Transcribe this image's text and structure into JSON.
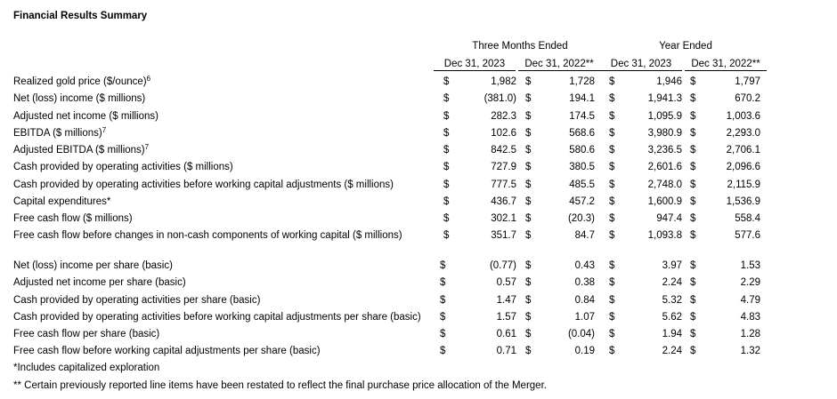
{
  "title": "Financial Results Summary",
  "currency": "$",
  "header": {
    "groups": [
      "Three Months Ended",
      "Year Ended"
    ],
    "columns": [
      "Dec 31, 2023",
      "Dec 31, 2022**",
      "Dec 31, 2023",
      "Dec 31, 2022**"
    ]
  },
  "sections": [
    {
      "rows": [
        {
          "label": "Realized gold price ($/ounce)",
          "note": "6",
          "cells": [
            "1,982",
            "1,728",
            "1,946",
            "1,797"
          ]
        },
        {
          "label": "Net (loss) income ($ millions)",
          "cells": [
            "(381.0)",
            "194.1",
            "1,941.3",
            "670.2"
          ]
        },
        {
          "label": "Adjusted net income ($ millions)",
          "cells": [
            "282.3",
            "174.5",
            "1,095.9",
            "1,003.6"
          ]
        },
        {
          "label": "EBITDA ($ millions)",
          "note": "7",
          "cells": [
            "102.6",
            "568.6",
            "3,980.9",
            "2,293.0"
          ]
        },
        {
          "label": "Adjusted EBITDA ($ millions)",
          "note": "7",
          "cells": [
            "842.5",
            "580.6",
            "3,236.5",
            "2,706.1"
          ]
        },
        {
          "label": "Cash provided by operating activities ($ millions)",
          "cells": [
            "727.9",
            "380.5",
            "2,601.6",
            "2,096.6"
          ]
        },
        {
          "label": "Cash provided by operating activities before working capital adjustments ($ millions)",
          "cells": [
            "777.5",
            "485.5",
            "2,748.0",
            "2,115.9"
          ]
        },
        {
          "label": "Capital expenditures*",
          "cells": [
            "436.7",
            "457.2",
            "1,600.9",
            "1,536.9"
          ]
        },
        {
          "label": "Free cash flow ($ millions)",
          "cells": [
            "302.1",
            "(20.3)",
            "947.4",
            "558.4"
          ]
        },
        {
          "label": "Free cash flow before changes in non-cash components of working capital ($ millions)",
          "cells": [
            "351.7",
            "84.7",
            "1,093.8",
            "577.6"
          ]
        }
      ]
    },
    {
      "rows": [
        {
          "label": "Net (loss) income per share (basic)",
          "cells": [
            "(0.77)",
            "0.43",
            "3.97",
            "1.53"
          ]
        },
        {
          "label": "Adjusted net income per share (basic)",
          "cells": [
            "0.57",
            "0.38",
            "2.24",
            "2.29"
          ]
        },
        {
          "label": "Cash provided by operating activities per share (basic)",
          "cells": [
            "1.47",
            "0.84",
            "5.32",
            "4.79"
          ]
        },
        {
          "label": "Cash provided by operating activities before working capital adjustments per share (basic)",
          "cells": [
            "1.57",
            "1.07",
            "5.62",
            "4.83"
          ]
        },
        {
          "label": "Free cash flow per share (basic)",
          "cells": [
            "0.61",
            "(0.04)",
            "1.94",
            "1.28"
          ]
        },
        {
          "label": "Free cash flow before working capital adjustments per share (basic)",
          "cells": [
            "0.71",
            "0.19",
            "2.24",
            "1.32"
          ]
        }
      ]
    }
  ],
  "footnotes": [
    "*Includes capitalized exploration",
    "** Certain previously reported line items have been restated to reflect the final purchase price allocation of the Merger."
  ]
}
